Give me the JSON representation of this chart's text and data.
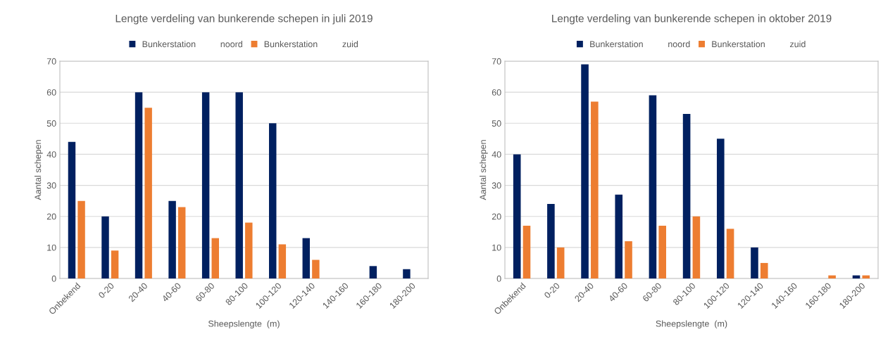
{
  "chart_data": [
    {
      "type": "bar",
      "title": "Lengte verdeling van bunkerende schepen in juli 2019",
      "xlabel": "Sheepslengte  (m)",
      "ylabel": "Aantal schepen",
      "categories": [
        "Onbekend",
        "0-20",
        "20-40",
        "40-60",
        "60-80",
        "80-100",
        "100-120",
        "120-140",
        "140-160",
        "160-180",
        "180-200"
      ],
      "series": [
        {
          "name": "Bunkerstation          noord",
          "color": "#002060",
          "values": [
            44,
            20,
            60,
            25,
            60,
            60,
            50,
            13,
            0,
            4,
            3
          ]
        },
        {
          "name": "Bunkerstation          zuid",
          "color": "#ed7d31",
          "values": [
            25,
            9,
            55,
            23,
            13,
            18,
            11,
            6,
            0,
            0,
            0
          ]
        }
      ],
      "ylim": [
        0,
        70
      ],
      "yticks": [
        0,
        10,
        20,
        30,
        40,
        50,
        60,
        70
      ],
      "grid": "y",
      "legend": "top"
    },
    {
      "type": "bar",
      "title": "Lengte verdeling van bunkerende schepen in oktober 2019",
      "xlabel": "Sheepslengte  (m)",
      "ylabel": "Aantal schepen",
      "categories": [
        "Onbekend",
        "0-20",
        "20-40",
        "40-60",
        "60-80",
        "80-100",
        "100-120",
        "120-140",
        "140-160",
        "160-180",
        "180-200"
      ],
      "series": [
        {
          "name": "Bunkerstation          noord",
          "color": "#002060",
          "values": [
            40,
            24,
            69,
            27,
            59,
            53,
            45,
            10,
            0,
            0,
            1
          ]
        },
        {
          "name": "Bunkerstation          zuid",
          "color": "#ed7d31",
          "values": [
            17,
            10,
            57,
            12,
            17,
            20,
            16,
            5,
            0,
            1,
            1
          ]
        }
      ],
      "ylim": [
        0,
        70
      ],
      "yticks": [
        0,
        10,
        20,
        30,
        40,
        50,
        60,
        70
      ],
      "grid": "y",
      "legend": "top"
    }
  ]
}
